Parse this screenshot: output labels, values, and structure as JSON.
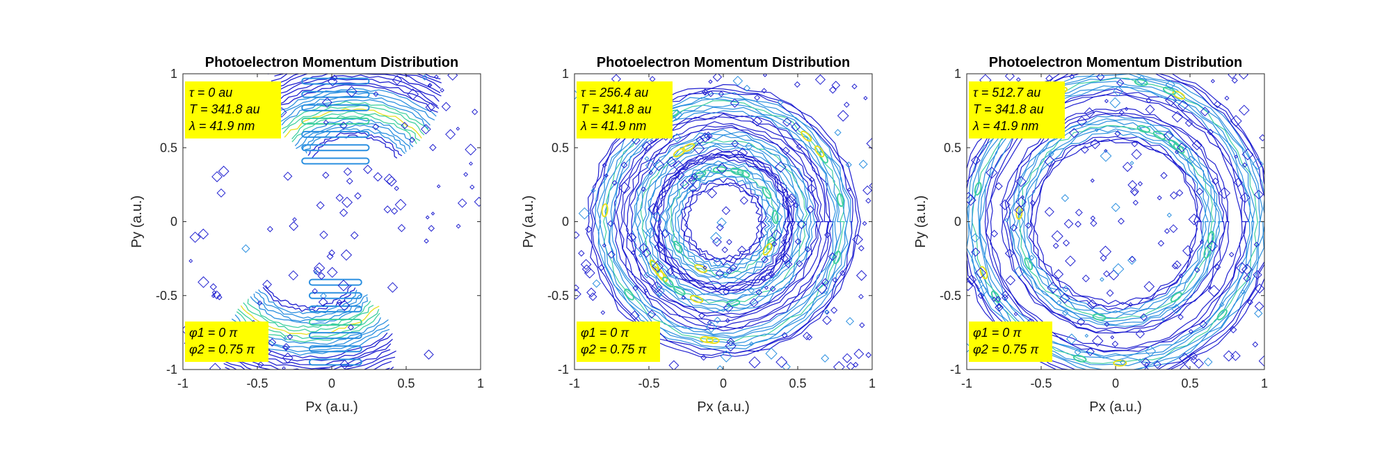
{
  "chart_data": [
    {
      "type": "contour",
      "title": "Photoelectron Momentum Distribution",
      "xlabel": "Px (a.u.)",
      "ylabel": "Py (a.u.)",
      "xlim": [
        -1,
        1
      ],
      "ylim": [
        -1,
        1
      ],
      "xticks": [
        "-1",
        "-0.5",
        "0",
        "0.5",
        "1"
      ],
      "yticks": [
        "-1",
        "-0.5",
        "0",
        "0.5",
        "1"
      ],
      "grid": false,
      "colormap": "parula",
      "annotation_top": [
        "τ = 0 au",
        "T = 341.8 au",
        "λ = 41.9 nm"
      ],
      "annotation_bottom": [
        "φ1 = 0 π",
        "φ2 = 0.75 π"
      ],
      "pattern": "two-lobes",
      "lobes": [
        {
          "center": [
            0.15,
            0.35
          ],
          "angle_range_deg": [
            20,
            160
          ],
          "radius": 0.55
        },
        {
          "center": [
            -0.15,
            -0.35
          ],
          "angle_range_deg": [
            200,
            340
          ],
          "radius": 0.55
        }
      ]
    },
    {
      "type": "contour",
      "title": "Photoelectron Momentum Distribution",
      "xlabel": "Px (a.u.)",
      "ylabel": "Py (a.u.)",
      "xlim": [
        -1,
        1
      ],
      "ylim": [
        -1,
        1
      ],
      "xticks": [
        "-1",
        "-0.5",
        "0",
        "0.5",
        "1"
      ],
      "yticks": [
        "-1",
        "-0.5",
        "0",
        "0.5",
        "1"
      ],
      "grid": false,
      "colormap": "parula",
      "annotation_top": [
        "τ = 256.4 au",
        "T = 341.8 au",
        "λ = 41.9 nm"
      ],
      "annotation_bottom": [
        "φ1 = 0 π",
        "φ2 = 0.75 π"
      ],
      "pattern": "rings",
      "rings": [
        0.35,
        0.55,
        0.8
      ]
    },
    {
      "type": "contour",
      "title": "Photoelectron Momentum Distribution",
      "xlabel": "Px (a.u.)",
      "ylabel": "Py (a.u.)",
      "xlim": [
        -1,
        1
      ],
      "ylim": [
        -1,
        1
      ],
      "xticks": [
        "-1",
        "-0.5",
        "0",
        "0.5",
        "1"
      ],
      "yticks": [
        "-1",
        "-0.5",
        "0",
        "0.5",
        "1"
      ],
      "grid": false,
      "colormap": "parula",
      "annotation_top": [
        "τ = 512.7 au",
        "T = 341.8 au",
        "λ = 41.9 nm"
      ],
      "annotation_bottom": [
        "φ1 = 0 π",
        "φ2 = 0.75 π"
      ],
      "pattern": "ring",
      "rings": [
        0.65,
        0.95
      ]
    }
  ],
  "colors": {
    "contour_low": "#1f1fd0",
    "contour_mid": "#2a8fe0",
    "contour_high": "#3fd0a0",
    "contour_peak": "#e8e020",
    "annotation_bg": "#ffff00",
    "axis": "#262626"
  }
}
